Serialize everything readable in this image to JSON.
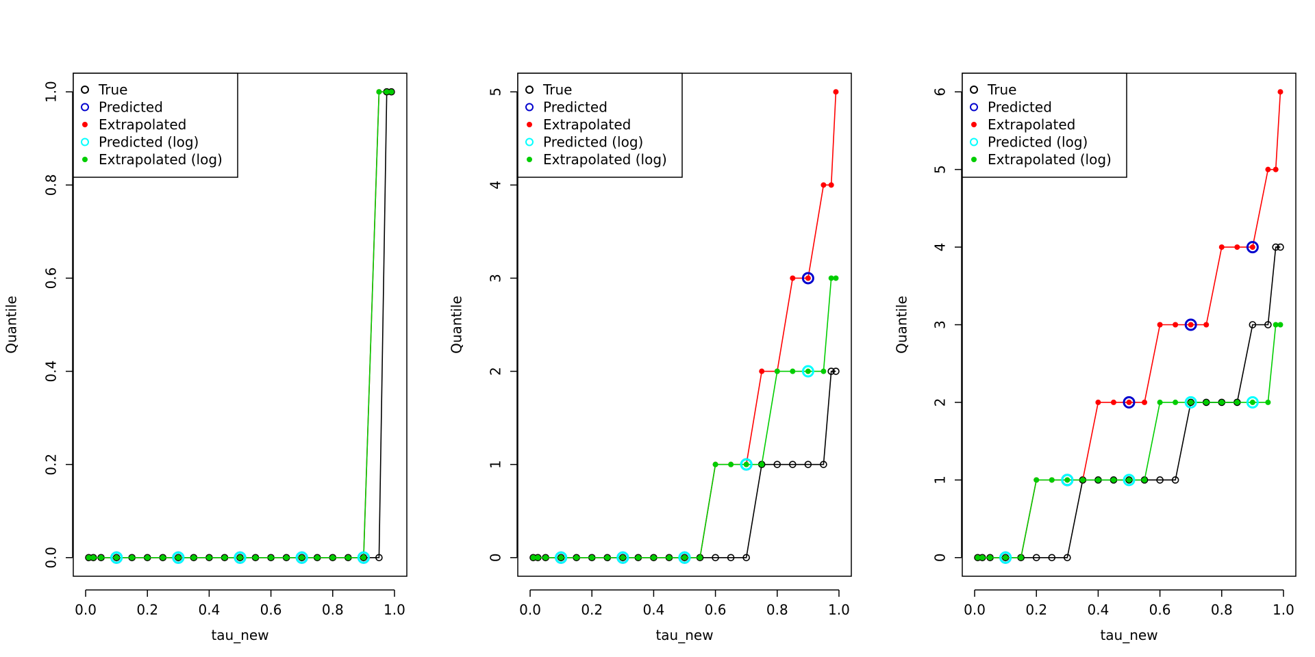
{
  "colors": {
    "true": "#000000",
    "predicted": "#0000CD",
    "extrapolated": "#FF0000",
    "predicted_log": "#00FFFF",
    "extrapolated_log": "#00CD00"
  },
  "legend": {
    "placement": "top-left",
    "entries": [
      {
        "label": "True",
        "key": "true",
        "marker": "open-circle"
      },
      {
        "label": "Predicted",
        "key": "predicted",
        "marker": "open-circle"
      },
      {
        "label": "Extrapolated",
        "key": "extrapolated",
        "marker": "filled-dot"
      },
      {
        "label": "Predicted (log)",
        "key": "predicted_log",
        "marker": "open-circle"
      },
      {
        "label": "Extrapolated (log)",
        "key": "extrapolated_log",
        "marker": "filled-dot"
      }
    ]
  },
  "chart_data": [
    {
      "type": "line",
      "xlabel": "tau_new",
      "ylabel": "Quantile",
      "xlim": [
        0,
        1
      ],
      "ylim": [
        0,
        1
      ],
      "xticks": [
        "0.0",
        "0.2",
        "0.4",
        "0.6",
        "0.8",
        "1.0"
      ],
      "yticks": [
        "0.0",
        "0.2",
        "0.4",
        "0.6",
        "0.8",
        "1.0"
      ],
      "grid": false,
      "x": [
        0.01,
        0.025,
        0.05,
        0.1,
        0.15,
        0.2,
        0.25,
        0.3,
        0.35,
        0.4,
        0.45,
        0.5,
        0.55,
        0.6,
        0.65,
        0.7,
        0.75,
        0.8,
        0.85,
        0.9,
        0.95,
        0.975,
        0.99
      ],
      "series": [
        {
          "key": "true",
          "values": [
            0,
            0,
            0,
            0,
            0,
            0,
            0,
            0,
            0,
            0,
            0,
            0,
            0,
            0,
            0,
            0,
            0,
            0,
            0,
            0,
            0,
            1,
            1
          ]
        },
        {
          "key": "extrapolated",
          "values": [
            0,
            0,
            0,
            0,
            0,
            0,
            0,
            0,
            0,
            0,
            0,
            0,
            0,
            0,
            0,
            0,
            0,
            0,
            0,
            0,
            1,
            1,
            1
          ]
        },
        {
          "key": "extrapolated_log",
          "values": [
            0,
            0,
            0,
            0,
            0,
            0,
            0,
            0,
            0,
            0,
            0,
            0,
            0,
            0,
            0,
            0,
            0,
            0,
            0,
            0,
            1,
            1,
            1
          ]
        }
      ],
      "predicted": {
        "x": [
          0.1,
          0.3,
          0.5,
          0.7,
          0.9
        ],
        "values": [
          0,
          0,
          0,
          0,
          0
        ]
      },
      "predicted_log": {
        "x": [
          0.1,
          0.3,
          0.5,
          0.7,
          0.9
        ],
        "values": [
          0,
          0,
          0,
          0,
          0
        ]
      }
    },
    {
      "type": "line",
      "xlabel": "tau_new",
      "ylabel": "Quantile",
      "xlim": [
        0,
        1
      ],
      "ylim": [
        0,
        5
      ],
      "xticks": [
        "0.0",
        "0.2",
        "0.4",
        "0.6",
        "0.8",
        "1.0"
      ],
      "yticks": [
        "0",
        "1",
        "2",
        "3",
        "4",
        "5"
      ],
      "grid": false,
      "x": [
        0.01,
        0.025,
        0.05,
        0.1,
        0.15,
        0.2,
        0.25,
        0.3,
        0.35,
        0.4,
        0.45,
        0.5,
        0.55,
        0.6,
        0.65,
        0.7,
        0.75,
        0.8,
        0.85,
        0.9,
        0.95,
        0.975,
        0.99
      ],
      "series": [
        {
          "key": "true",
          "values": [
            0,
            0,
            0,
            0,
            0,
            0,
            0,
            0,
            0,
            0,
            0,
            0,
            0,
            0,
            0,
            0,
            1,
            1,
            1,
            1,
            1,
            2,
            2
          ]
        },
        {
          "key": "extrapolated",
          "values": [
            0,
            0,
            0,
            0,
            0,
            0,
            0,
            0,
            0,
            0,
            0,
            0,
            0,
            1,
            1,
            1,
            2,
            2,
            3,
            3,
            4,
            4,
            5
          ]
        },
        {
          "key": "extrapolated_log",
          "values": [
            0,
            0,
            0,
            0,
            0,
            0,
            0,
            0,
            0,
            0,
            0,
            0,
            0,
            1,
            1,
            1,
            1,
            2,
            2,
            2,
            2,
            3,
            3
          ]
        }
      ],
      "predicted": {
        "x": [
          0.1,
          0.3,
          0.5,
          0.7,
          0.9
        ],
        "values": [
          0,
          0,
          0,
          1,
          3
        ]
      },
      "predicted_log": {
        "x": [
          0.1,
          0.3,
          0.5,
          0.7,
          0.9
        ],
        "values": [
          0,
          0,
          0,
          1,
          2
        ]
      }
    },
    {
      "type": "line",
      "xlabel": "tau_new",
      "ylabel": "Quantile",
      "xlim": [
        0,
        1
      ],
      "ylim": [
        0,
        6
      ],
      "xticks": [
        "0.0",
        "0.2",
        "0.4",
        "0.6",
        "0.8",
        "1.0"
      ],
      "yticks": [
        "0",
        "1",
        "2",
        "3",
        "4",
        "5",
        "6"
      ],
      "grid": false,
      "x": [
        0.01,
        0.025,
        0.05,
        0.1,
        0.15,
        0.2,
        0.25,
        0.3,
        0.35,
        0.4,
        0.45,
        0.5,
        0.55,
        0.6,
        0.65,
        0.7,
        0.75,
        0.8,
        0.85,
        0.9,
        0.95,
        0.975,
        0.99
      ],
      "series": [
        {
          "key": "true",
          "values": [
            0,
            0,
            0,
            0,
            0,
            0,
            0,
            0,
            1,
            1,
            1,
            1,
            1,
            1,
            1,
            2,
            2,
            2,
            2,
            3,
            3,
            4,
            4
          ]
        },
        {
          "key": "extrapolated",
          "values": [
            0,
            0,
            0,
            0,
            0,
            1,
            1,
            1,
            1,
            2,
            2,
            2,
            2,
            3,
            3,
            3,
            3,
            4,
            4,
            4,
            5,
            5,
            6
          ]
        },
        {
          "key": "extrapolated_log",
          "values": [
            0,
            0,
            0,
            0,
            0,
            1,
            1,
            1,
            1,
            1,
            1,
            1,
            1,
            2,
            2,
            2,
            2,
            2,
            2,
            2,
            2,
            3,
            3
          ]
        }
      ],
      "predicted": {
        "x": [
          0.1,
          0.3,
          0.5,
          0.7,
          0.9
        ],
        "values": [
          0,
          1,
          2,
          3,
          4
        ]
      },
      "predicted_log": {
        "x": [
          0.1,
          0.3,
          0.5,
          0.7,
          0.9
        ],
        "values": [
          0,
          1,
          1,
          2,
          2
        ]
      }
    }
  ]
}
